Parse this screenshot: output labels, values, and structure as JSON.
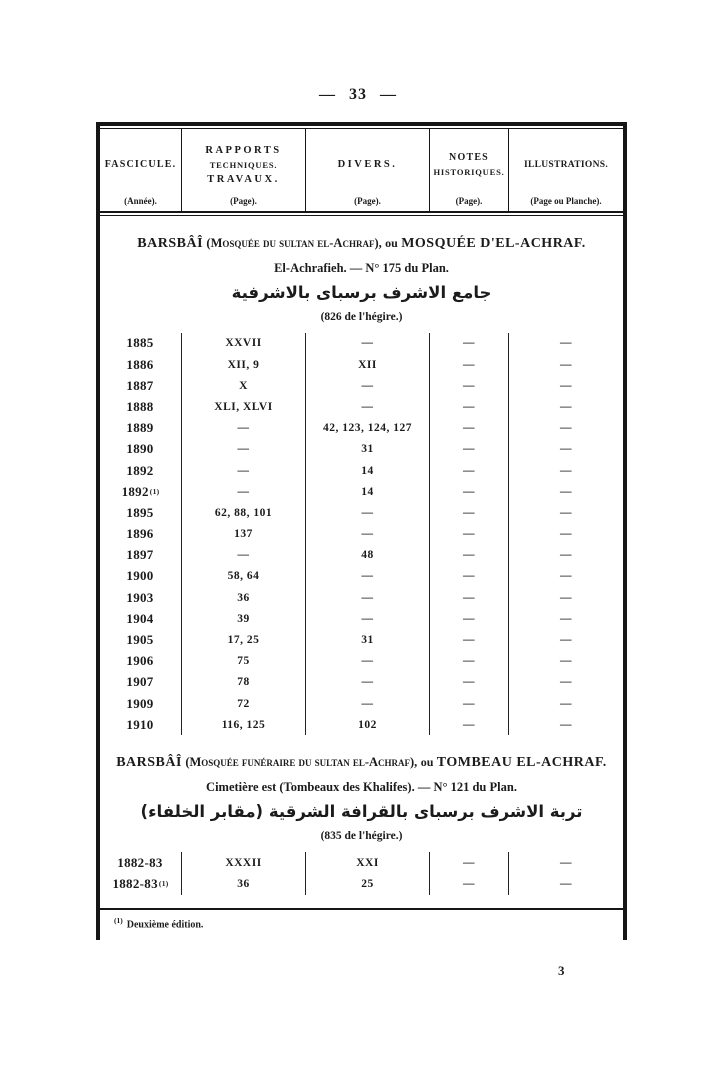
{
  "page": {
    "folio": "— 33 —",
    "page_number": "3"
  },
  "table": {
    "columns": [
      {
        "title_lines": [
          "FASCICULE."
        ],
        "subtitle": "(Année)."
      },
      {
        "title_lines": [
          "RAPPORTS",
          "TECHNIQUES.",
          "TRAVAUX."
        ],
        "subtitle": "(Page)."
      },
      {
        "title_lines": [
          "DIVERS."
        ],
        "subtitle": "(Page)."
      },
      {
        "title_lines": [
          "NOTES",
          "HISTORIQUES."
        ],
        "subtitle": "(Page)."
      },
      {
        "title_lines": [
          "ILLUSTRATIONS."
        ],
        "subtitle": "(Page ou Planche)."
      }
    ],
    "sections": [
      {
        "title_name": "BARSBÂÎ",
        "title_paren": "(Mosquée du sultan el-Achraf),",
        "title_conj": "ou",
        "title_alt": "MOSQUÉE D'EL-ACHRAF.",
        "subtitle": "El-Achrafieh. — N° 175 du Plan.",
        "arabic": "جامع الاشرف برسباى بالاشرفية",
        "hegira": "(826 de l'hégire.)",
        "rows": [
          {
            "year": "1885",
            "sup": "",
            "rapports": "XXVII",
            "divers": "—",
            "notes": "—",
            "illustrations": "—"
          },
          {
            "year": "1886",
            "sup": "",
            "rapports": "XII, 9",
            "divers": "XII",
            "notes": "—",
            "illustrations": "—"
          },
          {
            "year": "1887",
            "sup": "",
            "rapports": "X",
            "divers": "—",
            "notes": "—",
            "illustrations": "—"
          },
          {
            "year": "1888",
            "sup": "",
            "rapports": "XLI, XLVI",
            "divers": "—",
            "notes": "—",
            "illustrations": "—"
          },
          {
            "year": "1889",
            "sup": "",
            "rapports": "—",
            "divers": "42, 123, 124, 127",
            "notes": "—",
            "illustrations": "—"
          },
          {
            "year": "1890",
            "sup": "",
            "rapports": "—",
            "divers": "31",
            "notes": "—",
            "illustrations": "—"
          },
          {
            "year": "1892",
            "sup": "",
            "rapports": "—",
            "divers": "14",
            "notes": "—",
            "illustrations": "—"
          },
          {
            "year": "1892",
            "sup": "(1)",
            "rapports": "—",
            "divers": "14",
            "notes": "—",
            "illustrations": "—"
          },
          {
            "year": "1895",
            "sup": "",
            "rapports": "62, 88, 101",
            "divers": "—",
            "notes": "—",
            "illustrations": "—"
          },
          {
            "year": "1896",
            "sup": "",
            "rapports": "137",
            "divers": "—",
            "notes": "—",
            "illustrations": "—"
          },
          {
            "year": "1897",
            "sup": "",
            "rapports": "—",
            "divers": "48",
            "notes": "—",
            "illustrations": "—"
          },
          {
            "year": "1900",
            "sup": "",
            "rapports": "58, 64",
            "divers": "—",
            "notes": "—",
            "illustrations": "—"
          },
          {
            "year": "1903",
            "sup": "",
            "rapports": "36",
            "divers": "—",
            "notes": "—",
            "illustrations": "—"
          },
          {
            "year": "1904",
            "sup": "",
            "rapports": "39",
            "divers": "—",
            "notes": "—",
            "illustrations": "—"
          },
          {
            "year": "1905",
            "sup": "",
            "rapports": "17, 25",
            "divers": "31",
            "notes": "—",
            "illustrations": "—"
          },
          {
            "year": "1906",
            "sup": "",
            "rapports": "75",
            "divers": "—",
            "notes": "—",
            "illustrations": "—"
          },
          {
            "year": "1907",
            "sup": "",
            "rapports": "78",
            "divers": "—",
            "notes": "—",
            "illustrations": "—"
          },
          {
            "year": "1909",
            "sup": "",
            "rapports": "72",
            "divers": "—",
            "notes": "—",
            "illustrations": "—"
          },
          {
            "year": "1910",
            "sup": "",
            "rapports": "116, 125",
            "divers": "102",
            "notes": "—",
            "illustrations": "—"
          }
        ]
      },
      {
        "title_name": "BARSBÂÎ",
        "title_paren": "(Mosquée funéraire du sultan el-Achraf),",
        "title_conj": "ou",
        "title_alt": "TOMBEAU EL-ACHRAF.",
        "subtitle": "Cimetière est (Tombeaux des Khalifes). — N° 121 du Plan.",
        "arabic": "تربة الاشرف برسباى بالقرافة الشرقية (مقابر الخلفاء)",
        "hegira": "(835 de l'hégire.)",
        "rows": [
          {
            "year": "1882-83",
            "sup": "",
            "rapports": "XXXII",
            "divers": "XXI",
            "notes": "—",
            "illustrations": "—"
          },
          {
            "year": "1882-83",
            "sup": "(1)",
            "rapports": "36",
            "divers": "25",
            "notes": "—",
            "illustrations": "—"
          }
        ]
      }
    ],
    "footnote": {
      "marker": "(1)",
      "text": "Deuxième édition."
    }
  }
}
